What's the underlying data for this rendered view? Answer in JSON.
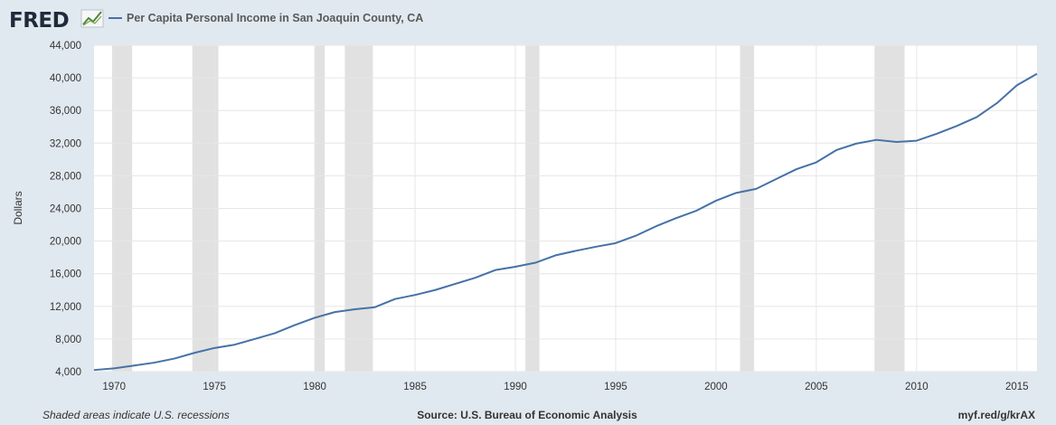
{
  "header": {
    "logo_text": "FRED",
    "legend_label": "Per Capita Personal Income in San Joaquin County, CA"
  },
  "footer": {
    "left": "Shaded areas indicate U.S. recessions",
    "source": "Source: U.S. Bureau of Economic Analysis",
    "link": "myf.red/g/krAX"
  },
  "chart_data": {
    "type": "line",
    "title": "",
    "xlabel": "",
    "ylabel": "Dollars",
    "xlim": [
      1969,
      2016
    ],
    "ylim": [
      4000,
      44000
    ],
    "xticks": [
      "1970",
      "1975",
      "1980",
      "1985",
      "1990",
      "1995",
      "2000",
      "2005",
      "2010",
      "2015"
    ],
    "yticks": [
      "4,000",
      "8,000",
      "12,000",
      "16,000",
      "20,000",
      "24,000",
      "28,000",
      "32,000",
      "36,000",
      "40,000",
      "44,000"
    ],
    "grid": true,
    "legend": "top-left",
    "line_color": "#4572a7",
    "recession_color": "#e1e1e1",
    "recessions": [
      [
        1969.9,
        1970.9
      ],
      [
        1973.9,
        1975.2
      ],
      [
        1980.0,
        1980.5
      ],
      [
        1981.5,
        1982.9
      ],
      [
        1990.5,
        1991.2
      ],
      [
        2001.2,
        2001.9
      ],
      [
        2007.9,
        2009.4
      ]
    ],
    "series": [
      {
        "name": "Per Capita Personal Income in San Joaquin County, CA",
        "x": [
          1969,
          1970,
          1971,
          1972,
          1973,
          1974,
          1975,
          1976,
          1977,
          1978,
          1979,
          1980,
          1981,
          1982,
          1983,
          1984,
          1985,
          1986,
          1987,
          1988,
          1989,
          1990,
          1991,
          1992,
          1993,
          1994,
          1995,
          1996,
          1997,
          1998,
          1999,
          2000,
          2001,
          2002,
          2003,
          2004,
          2005,
          2006,
          2007,
          2008,
          2009,
          2010,
          2011,
          2012,
          2013,
          2014,
          2015,
          2016
        ],
        "values": [
          4200,
          4400,
          4750,
          5100,
          5600,
          6300,
          6900,
          7300,
          8000,
          8700,
          9700,
          10600,
          11300,
          11650,
          11900,
          12900,
          13400,
          14000,
          14750,
          15500,
          16450,
          16850,
          17350,
          18250,
          18800,
          19300,
          19750,
          20650,
          21800,
          22800,
          23700,
          24950,
          25900,
          26400,
          27600,
          28800,
          29650,
          31150,
          31950,
          32400,
          32150,
          32300,
          33150,
          34100,
          35200,
          36900,
          39100,
          40500
        ]
      }
    ]
  }
}
